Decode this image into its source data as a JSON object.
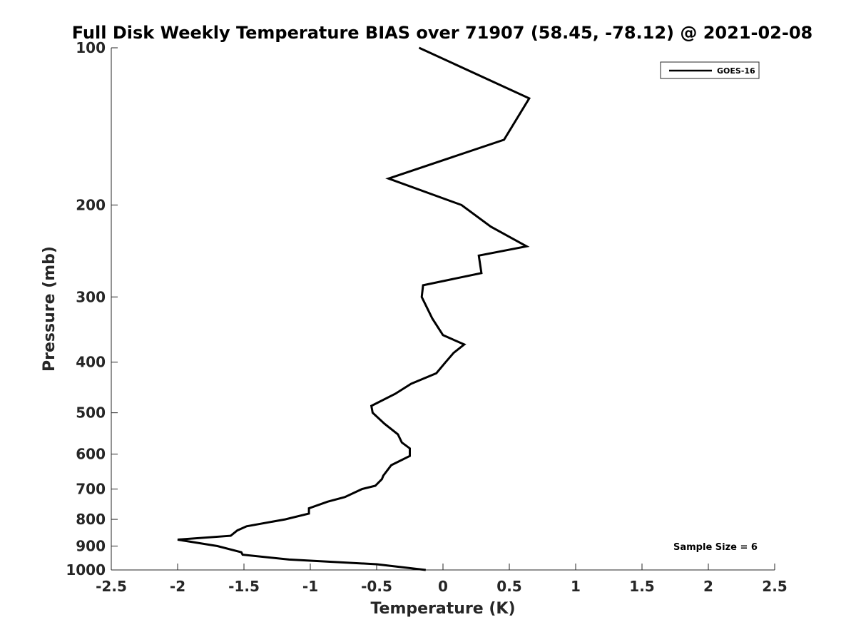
{
  "chart_data": {
    "type": "line",
    "title": "Full Disk Weekly Temperature BIAS over 71907 (58.45, -78.12) @ 2021-02-08",
    "xlabel": "Temperature (K)",
    "ylabel": "Pressure (mb)",
    "xlim": [
      -2.5,
      2.5
    ],
    "ylim": [
      100,
      1000
    ],
    "y_scale": "log",
    "y_reversed": true,
    "x_ticks": [
      "-2.5",
      "-2",
      "-1.5",
      "-1",
      "-0.5",
      "0",
      "0.5",
      "1",
      "1.5",
      "2",
      "2.5"
    ],
    "y_ticks": [
      "100",
      "200",
      "300",
      "400",
      "500",
      "600",
      "700",
      "800",
      "900",
      "1000"
    ],
    "grid": false,
    "legend_position": "top-right",
    "series": [
      {
        "name": "GOES-16",
        "color": "#000000",
        "points": [
          {
            "x": -0.18,
            "y": 100
          },
          {
            "x": 0.65,
            "y": 125
          },
          {
            "x": 0.46,
            "y": 150
          },
          {
            "x": -0.41,
            "y": 178
          },
          {
            "x": 0.14,
            "y": 200
          },
          {
            "x": 0.36,
            "y": 220
          },
          {
            "x": 0.63,
            "y": 240
          },
          {
            "x": 0.27,
            "y": 250
          },
          {
            "x": 0.29,
            "y": 270
          },
          {
            "x": -0.15,
            "y": 285
          },
          {
            "x": -0.16,
            "y": 300
          },
          {
            "x": -0.08,
            "y": 330
          },
          {
            "x": 0.0,
            "y": 355
          },
          {
            "x": 0.16,
            "y": 370
          },
          {
            "x": 0.08,
            "y": 384
          },
          {
            "x": 0.02,
            "y": 400
          },
          {
            "x": -0.05,
            "y": 420
          },
          {
            "x": -0.24,
            "y": 440
          },
          {
            "x": -0.36,
            "y": 460
          },
          {
            "x": -0.54,
            "y": 485
          },
          {
            "x": -0.53,
            "y": 500
          },
          {
            "x": -0.44,
            "y": 525
          },
          {
            "x": -0.34,
            "y": 550
          },
          {
            "x": -0.31,
            "y": 570
          },
          {
            "x": -0.25,
            "y": 585
          },
          {
            "x": -0.25,
            "y": 605
          },
          {
            "x": -0.39,
            "y": 630
          },
          {
            "x": -0.45,
            "y": 660
          },
          {
            "x": -0.46,
            "y": 670
          },
          {
            "x": -0.51,
            "y": 690
          },
          {
            "x": -0.61,
            "y": 700
          },
          {
            "x": -0.74,
            "y": 725
          },
          {
            "x": -0.87,
            "y": 740
          },
          {
            "x": -1.01,
            "y": 762
          },
          {
            "x": -1.01,
            "y": 780
          },
          {
            "x": -1.19,
            "y": 800
          },
          {
            "x": -1.48,
            "y": 825
          },
          {
            "x": -1.55,
            "y": 840
          },
          {
            "x": -1.6,
            "y": 860
          },
          {
            "x": -2.0,
            "y": 875
          },
          {
            "x": -1.7,
            "y": 900
          },
          {
            "x": -1.52,
            "y": 925
          },
          {
            "x": -1.51,
            "y": 935
          },
          {
            "x": -1.16,
            "y": 955
          },
          {
            "x": -0.5,
            "y": 975
          },
          {
            "x": -0.13,
            "y": 1000
          }
        ]
      }
    ],
    "annotations": [
      "Sample Size = 6"
    ]
  }
}
